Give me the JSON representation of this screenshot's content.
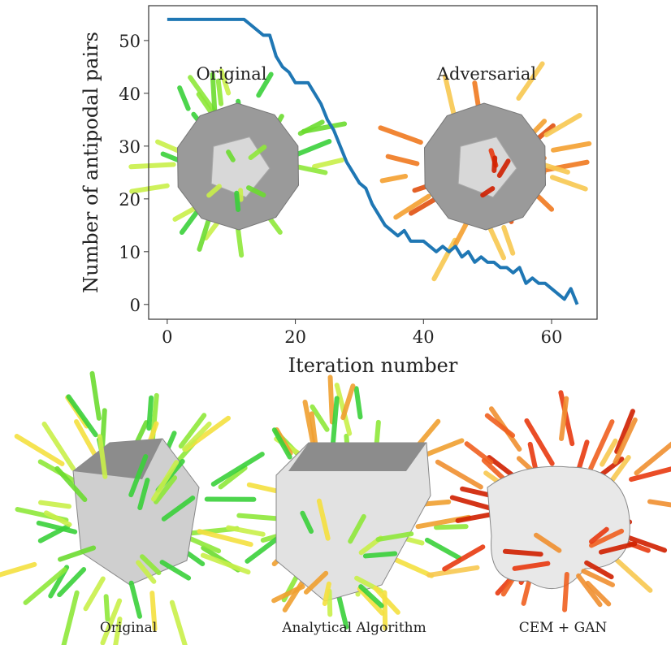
{
  "chart_data": {
    "type": "line",
    "xlabel": "Iteration number",
    "ylabel": "Number of antipodal pairs",
    "annotations": [
      "Original",
      "Adversarial"
    ],
    "x": [
      0,
      1,
      2,
      3,
      4,
      5,
      6,
      7,
      8,
      9,
      10,
      11,
      12,
      13,
      14,
      15,
      16,
      17,
      18,
      19,
      20,
      21,
      22,
      23,
      24,
      25,
      26,
      27,
      28,
      29,
      30,
      31,
      32,
      33,
      34,
      35,
      36,
      37,
      38,
      39,
      40,
      41,
      42,
      43,
      44,
      45,
      46,
      47,
      48,
      49,
      50,
      51,
      52,
      53,
      54,
      55,
      56,
      57,
      58,
      59,
      60,
      61,
      62,
      63,
      64
    ],
    "series": [
      {
        "color": "#1f77b4",
        "values": [
          54,
          54,
          54,
          54,
          54,
          54,
          54,
          54,
          54,
          54,
          54,
          54,
          54,
          53,
          52,
          51,
          51,
          47,
          45,
          44,
          42,
          42,
          42,
          40,
          38,
          35,
          33,
          30,
          27,
          25,
          23,
          22,
          19,
          17,
          15,
          14,
          13,
          14,
          12,
          12,
          12,
          11,
          10,
          11,
          10,
          11,
          9,
          10,
          8,
          9,
          8,
          8,
          7,
          7,
          6,
          7,
          4,
          5,
          4,
          4,
          3,
          2,
          1,
          3,
          0
        ]
      }
    ],
    "xlim": [
      -2.9,
      67.1
    ],
    "ylim": [
      -2.8,
      56.6
    ],
    "xticks": [
      0,
      20,
      40,
      60
    ],
    "yticks": [
      0,
      10,
      20,
      30,
      40,
      50
    ]
  },
  "figure": {
    "captions": [
      "Original",
      "Analytical Algorithm",
      "CEM + GAN"
    ]
  }
}
